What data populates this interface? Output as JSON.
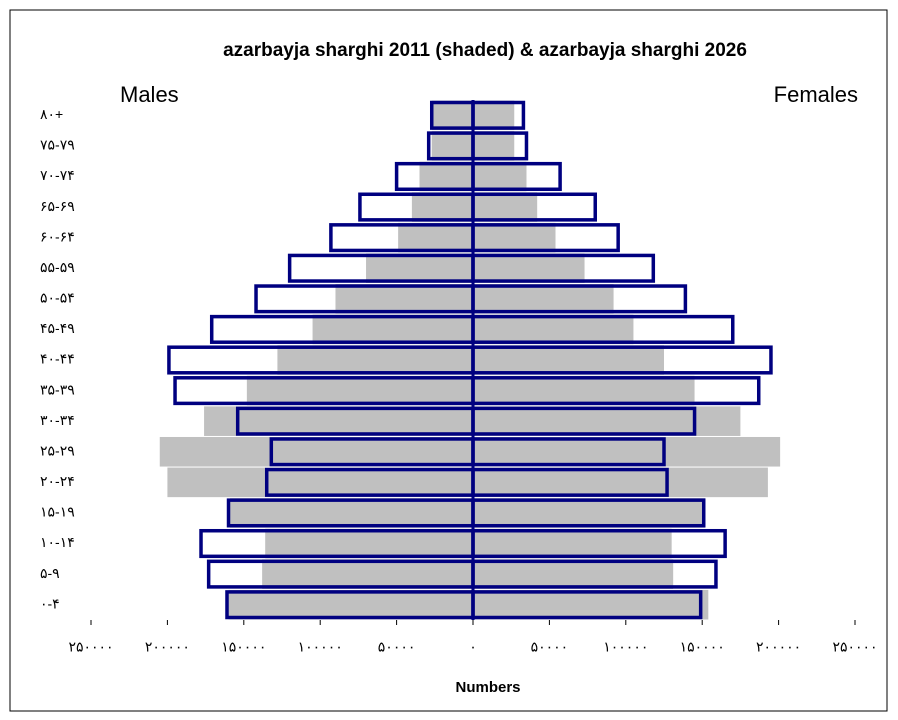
{
  "chart_data": {
    "type": "pyramid",
    "title": "azarbayja sharghi 2011 (shaded) & azarbayja sharghi 2026",
    "left_label": "Males",
    "right_label": "Females",
    "x_label": "Numbers",
    "categories": [
      "۰-۴",
      "۵-۹",
      "۱۰-۱۴",
      "۱۵-۱۹",
      "۲۰-۲۴",
      "۲۵-۲۹",
      "۳۰-۳۴",
      "۳۵-۳۹",
      "۴۰-۴۴",
      "۴۵-۴۹",
      "۵۰-۵۴",
      "۵۵-۵۹",
      "۶۰-۶۴",
      "۶۵-۶۹",
      "۷۰-۷۴",
      "۷۵-۷۹",
      "۸۰+"
    ],
    "series": [
      {
        "side": "left",
        "style": "shaded",
        "color": "#c0c0c0",
        "values": [
          160000,
          138000,
          136000,
          159000,
          200000,
          205000,
          176000,
          148000,
          128000,
          105000,
          90000,
          70000,
          49000,
          40000,
          35000,
          27000,
          27000
        ]
      },
      {
        "side": "right",
        "style": "shaded",
        "color": "#c0c0c0",
        "values": [
          154000,
          131000,
          130000,
          152000,
          193000,
          201000,
          175000,
          145000,
          125000,
          105000,
          92000,
          73000,
          54000,
          42000,
          35000,
          27000,
          27000
        ]
      },
      {
        "side": "left",
        "style": "outline",
        "color": "#000080",
        "values": [
          161000,
          173000,
          178000,
          160000,
          135000,
          132000,
          154000,
          195000,
          199000,
          171000,
          142000,
          120000,
          93000,
          74000,
          50000,
          29000,
          27000
        ]
      },
      {
        "side": "right",
        "style": "outline",
        "color": "#000080",
        "values": [
          149000,
          159000,
          165000,
          151000,
          127000,
          125000,
          145000,
          187000,
          195000,
          170000,
          139000,
          118000,
          95000,
          80000,
          57000,
          35000,
          33000
        ]
      }
    ],
    "xlim": [
      -250000,
      250000
    ],
    "xticks": [
      {
        "value": -250000,
        "label": "۲۵۰۰۰۰"
      },
      {
        "value": -200000,
        "label": "۲۰۰۰۰۰"
      },
      {
        "value": -150000,
        "label": "۱۵۰۰۰۰"
      },
      {
        "value": -100000,
        "label": "۱۰۰۰۰۰"
      },
      {
        "value": -50000,
        "label": "۵۰۰۰۰"
      },
      {
        "value": 0,
        "label": "۰"
      },
      {
        "value": 50000,
        "label": "۵۰۰۰۰"
      },
      {
        "value": 100000,
        "label": "۱۰۰۰۰۰"
      },
      {
        "value": 150000,
        "label": "۱۵۰۰۰۰"
      },
      {
        "value": 200000,
        "label": "۲۰۰۰۰۰"
      },
      {
        "value": 250000,
        "label": "۲۵۰۰۰۰"
      }
    ]
  }
}
